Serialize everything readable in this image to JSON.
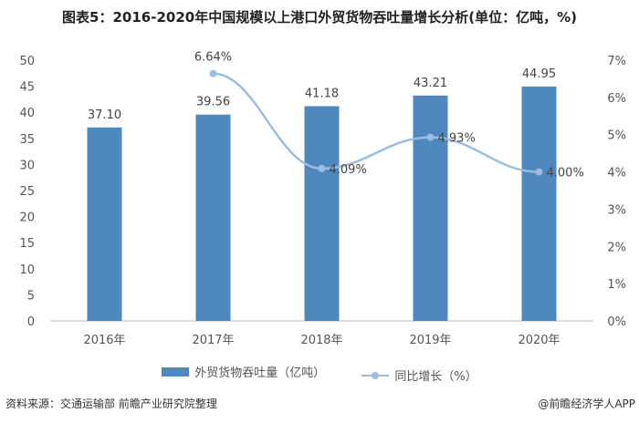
{
  "title": "图表5：2016-2020年中国规模以上港口外贸货物吞吐量增长分析(单位：亿吨，%)",
  "chart_data": {
    "type": "bar+line",
    "categories": [
      "2016年",
      "2017年",
      "2018年",
      "2019年",
      "2020年"
    ],
    "series": [
      {
        "name": "外贸货物吞吐量（亿吨）",
        "type": "bar",
        "axis": "left",
        "values": [
          37.1,
          39.56,
          41.18,
          43.21,
          44.95
        ],
        "labels": [
          "37.10",
          "39.56",
          "41.18",
          "43.21",
          "44.95"
        ],
        "color": "#4f88bf"
      },
      {
        "name": "同比增长（%）",
        "type": "line",
        "axis": "right",
        "values": [
          null,
          6.64,
          4.09,
          4.93,
          4.0
        ],
        "labels": [
          "",
          "6.64%",
          "4.09%",
          "4.93%",
          "4.00%"
        ],
        "color": "#9dbde0"
      }
    ],
    "left_axis": {
      "ylim": [
        0,
        50
      ],
      "ticks": [
        "0",
        "5",
        "10",
        "15",
        "20",
        "25",
        "30",
        "35",
        "40",
        "45",
        "50"
      ]
    },
    "right_axis": {
      "ylim": [
        0,
        7
      ],
      "ticks": [
        "0%",
        "1%",
        "2%",
        "3%",
        "4%",
        "5%",
        "6%",
        "7%"
      ]
    },
    "legend_position": "bottom"
  },
  "source": "资料来源：交通运输部 前瞻产业研究院整理",
  "credit": "@前瞻经济学人APP"
}
